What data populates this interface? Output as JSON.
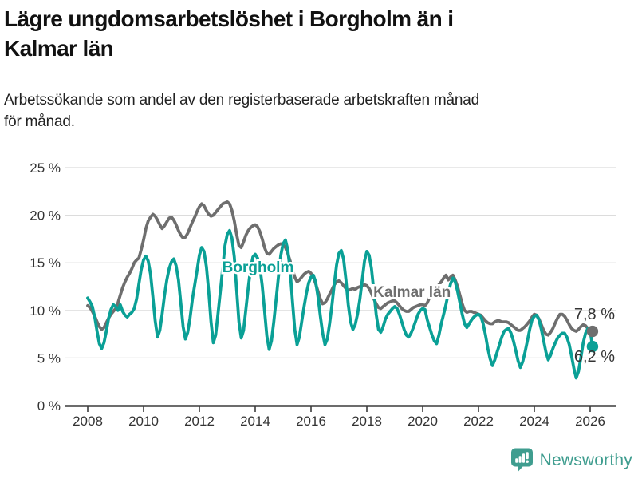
{
  "header": {
    "title_line1": "Lägre ungdomsarbetslöshet i Borgholm än i",
    "title_line2": "Kalmar län",
    "subtitle_line1": "Arbetssökande som andel av den registerbaserade arbetskraften månad",
    "subtitle_line2": "för månad."
  },
  "footer": {
    "brand": "Newsworthy",
    "brand_icon": "newsworthy-speech-bubble-bar-chart-icon",
    "brand_color": "#3f9d8f"
  },
  "colors": {
    "borgholm": "#0aa096",
    "kalmar": "#6e6e6e",
    "grid": "#dcdcdc",
    "axis": "#3c3c3c",
    "tick_text": "#333333",
    "end_label_text": "#333333"
  },
  "chart_data": {
    "type": "line",
    "title": "Lägre ungdomsarbetslöshet i Borgholm än i Kalmar län",
    "subtitle": "Arbetssökande som andel av den registerbaserade arbetskraften månad för månad.",
    "unit": "%",
    "frequency": "monthly",
    "x_start": "2008-01",
    "x_end": "2026-02",
    "ylim": [
      0,
      25
    ],
    "grid": "horizontal",
    "legend_position": "inline-labels",
    "y_ticks": [
      {
        "value": 0,
        "label": "0 %"
      },
      {
        "value": 5,
        "label": "5 %"
      },
      {
        "value": 10,
        "label": "10 %"
      },
      {
        "value": 15,
        "label": "15 %"
      },
      {
        "value": 20,
        "label": "20 %"
      },
      {
        "value": 25,
        "label": "25 %"
      }
    ],
    "x_ticks": [
      {
        "year": 2008,
        "label": "2008"
      },
      {
        "year": 2010,
        "label": "2010"
      },
      {
        "year": 2012,
        "label": "2012"
      },
      {
        "year": 2014,
        "label": "2014"
      },
      {
        "year": 2016,
        "label": "2016"
      },
      {
        "year": 2018,
        "label": "2018"
      },
      {
        "year": 2020,
        "label": "2020"
      },
      {
        "year": 2022,
        "label": "2022"
      },
      {
        "year": 2024,
        "label": "2024"
      },
      {
        "year": 2026,
        "label": "2026"
      }
    ],
    "series": [
      {
        "name": "Kalmar län",
        "color": "#6e6e6e",
        "end_label": "7,8 %",
        "end_value": 7.8,
        "label_pos": {
          "year_frac": 2019.62,
          "value": 11.9
        },
        "values": [
          10.5,
          10.3,
          9.9,
          9.4,
          8.8,
          8.3,
          8.0,
          8.2,
          8.7,
          9.2,
          9.6,
          9.9,
          10.2,
          10.8,
          11.6,
          12.4,
          13.0,
          13.5,
          13.9,
          14.4,
          15.0,
          15.3,
          15.5,
          16.4,
          17.4,
          18.6,
          19.4,
          19.8,
          20.1,
          19.9,
          19.5,
          19.0,
          18.6,
          18.9,
          19.3,
          19.7,
          19.8,
          19.5,
          19.0,
          18.4,
          17.9,
          17.6,
          17.7,
          18.1,
          18.7,
          19.3,
          19.8,
          20.4,
          20.9,
          21.2,
          21.0,
          20.5,
          20.1,
          19.9,
          20.0,
          20.3,
          20.6,
          20.9,
          21.2,
          21.3,
          21.4,
          21.2,
          20.5,
          19.4,
          18.0,
          16.8,
          16.6,
          17.2,
          17.9,
          18.4,
          18.7,
          18.9,
          19.0,
          18.8,
          18.3,
          17.5,
          16.6,
          16.0,
          15.9,
          16.2,
          16.5,
          16.7,
          16.9,
          17.0,
          16.9,
          16.6,
          16.0,
          15.2,
          14.3,
          13.5,
          13.0,
          13.2,
          13.5,
          13.8,
          14.0,
          14.1,
          13.9,
          13.5,
          12.8,
          12.0,
          11.2,
          10.7,
          10.8,
          11.2,
          11.7,
          12.2,
          12.7,
          13.0,
          13.1,
          12.9,
          12.6,
          12.3,
          12.1,
          12.2,
          12.3,
          12.2,
          12.4,
          12.5,
          12.6,
          12.7,
          12.6,
          12.3,
          11.8,
          11.2,
          10.7,
          10.3,
          10.2,
          10.4,
          10.6,
          10.8,
          10.9,
          11.0,
          11.0,
          10.8,
          10.5,
          10.2,
          10.0,
          9.9,
          9.9,
          10.1,
          10.3,
          10.4,
          10.5,
          10.6,
          10.6,
          10.5,
          10.8,
          11.4,
          11.8,
          12.1,
          12.4,
          12.7,
          13.0,
          13.4,
          13.7,
          13.2,
          13.5,
          13.7,
          13.2,
          12.5,
          11.6,
          10.7,
          10.0,
          9.8,
          9.9,
          9.9,
          9.8,
          9.7,
          9.6,
          9.5,
          9.2,
          8.9,
          8.7,
          8.6,
          8.6,
          8.8,
          8.9,
          8.9,
          8.8,
          8.8,
          8.8,
          8.7,
          8.5,
          8.3,
          8.1,
          7.9,
          7.9,
          8.1,
          8.3,
          8.6,
          8.9,
          9.3,
          9.6,
          9.5,
          9.1,
          8.5,
          7.9,
          7.5,
          7.4,
          7.7,
          8.1,
          8.7,
          9.2,
          9.6,
          9.6,
          9.4,
          9.0,
          8.5,
          8.1,
          7.9,
          7.8,
          8.0,
          8.3,
          8.5,
          8.4,
          8.1,
          7.9,
          7.8
        ]
      },
      {
        "name": "Borgholm",
        "color": "#0aa096",
        "end_label": "6,2 %",
        "end_value": 6.2,
        "label_pos": {
          "year_frac": 2014.1,
          "value": 14.5
        },
        "values": [
          11.3,
          10.9,
          10.4,
          9.3,
          7.8,
          6.5,
          6.0,
          6.6,
          7.8,
          9.2,
          10.1,
          10.6,
          10.4,
          10.0,
          10.6,
          9.9,
          9.5,
          9.3,
          9.6,
          9.8,
          10.2,
          11.2,
          12.8,
          14.3,
          15.3,
          15.7,
          15.2,
          13.8,
          11.4,
          8.9,
          7.2,
          7.9,
          9.6,
          11.6,
          13.2,
          14.4,
          15.1,
          15.4,
          14.7,
          13.2,
          10.8,
          8.3,
          7.0,
          7.7,
          9.2,
          11.2,
          12.7,
          14.2,
          15.8,
          16.6,
          16.2,
          14.6,
          12.0,
          8.8,
          6.6,
          7.4,
          9.6,
          12.0,
          14.4,
          16.8,
          18.0,
          18.4,
          17.6,
          15.6,
          12.2,
          8.8,
          7.1,
          7.9,
          10.1,
          12.4,
          14.4,
          15.6,
          15.9,
          15.5,
          14.6,
          12.6,
          10.0,
          7.3,
          5.9,
          6.8,
          8.8,
          11.2,
          13.6,
          15.8,
          17.0,
          17.4,
          16.4,
          14.2,
          11.0,
          8.0,
          6.4,
          7.2,
          8.8,
          10.4,
          11.8,
          12.9,
          13.5,
          13.7,
          13.0,
          11.4,
          9.4,
          7.6,
          6.4,
          7.0,
          8.6,
          10.6,
          12.8,
          14.8,
          16.0,
          16.3,
          15.4,
          13.2,
          10.6,
          8.8,
          8.0,
          8.5,
          9.6,
          11.2,
          13.2,
          15.2,
          16.2,
          15.8,
          14.4,
          12.0,
          9.6,
          8.0,
          7.7,
          8.3,
          9.1,
          9.6,
          9.9,
          10.2,
          10.4,
          10.2,
          9.6,
          8.8,
          8.0,
          7.4,
          7.2,
          7.6,
          8.2,
          8.9,
          9.6,
          10.0,
          10.2,
          10.1,
          9.0,
          8.2,
          7.4,
          6.8,
          6.5,
          7.4,
          8.6,
          9.6,
          10.6,
          11.8,
          12.8,
          13.4,
          13.0,
          12.0,
          10.8,
          9.6,
          8.6,
          8.2,
          8.6,
          9.0,
          9.3,
          9.5,
          9.6,
          9.4,
          8.6,
          7.4,
          6.0,
          4.9,
          4.2,
          4.8,
          5.6,
          6.4,
          7.2,
          7.8,
          8.0,
          8.1,
          7.6,
          6.8,
          5.8,
          4.7,
          4.0,
          4.6,
          5.6,
          6.8,
          8.0,
          9.0,
          9.4,
          9.5,
          9.0,
          8.0,
          6.8,
          5.6,
          4.8,
          5.3,
          6.0,
          6.6,
          7.1,
          7.4,
          7.6,
          7.6,
          7.2,
          6.4,
          5.2,
          3.9,
          2.9,
          3.6,
          5.0,
          6.6,
          7.6,
          8.1,
          7.9,
          6.2
        ]
      }
    ]
  }
}
